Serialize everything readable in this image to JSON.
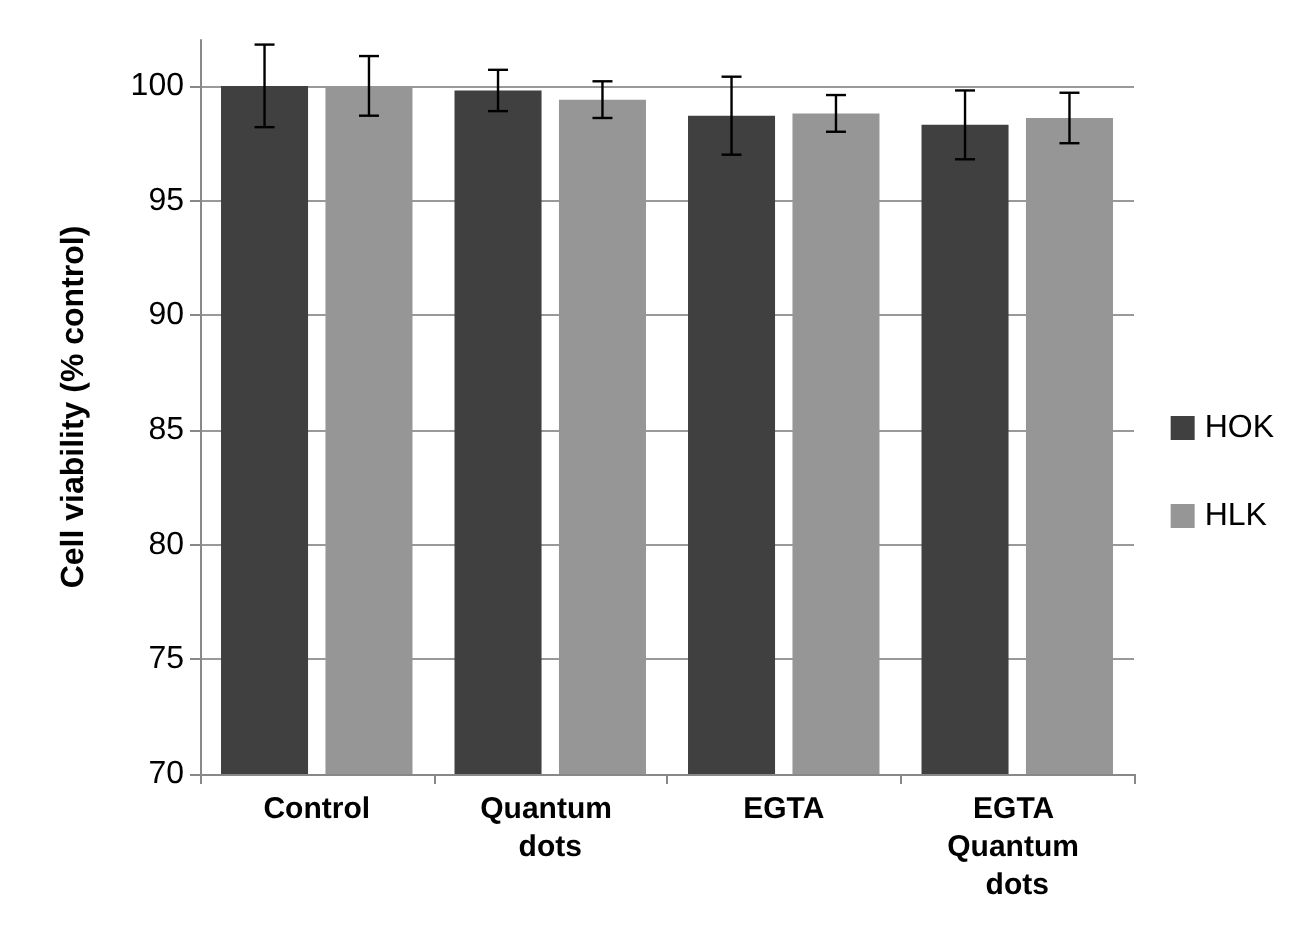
{
  "chart_data": {
    "type": "bar",
    "ylabel": "Cell viability (% control)",
    "categories": [
      "Control",
      "Quantum dots",
      "EGTA",
      "EGTA Quantum dots"
    ],
    "series": [
      {
        "name": "HOK",
        "color": "#404040",
        "values": [
          100,
          99.8,
          98.7,
          98.3
        ],
        "errors": [
          1.8,
          0.9,
          1.7,
          1.5
        ]
      },
      {
        "name": "HLK",
        "color": "#969696",
        "values": [
          100,
          99.4,
          98.8,
          98.6
        ],
        "errors": [
          1.3,
          0.8,
          0.8,
          1.1
        ]
      }
    ],
    "ylim": [
      70,
      102
    ],
    "yticks": [
      70,
      75,
      80,
      85,
      90,
      95,
      100
    ],
    "grid": "y",
    "legend": "right"
  }
}
